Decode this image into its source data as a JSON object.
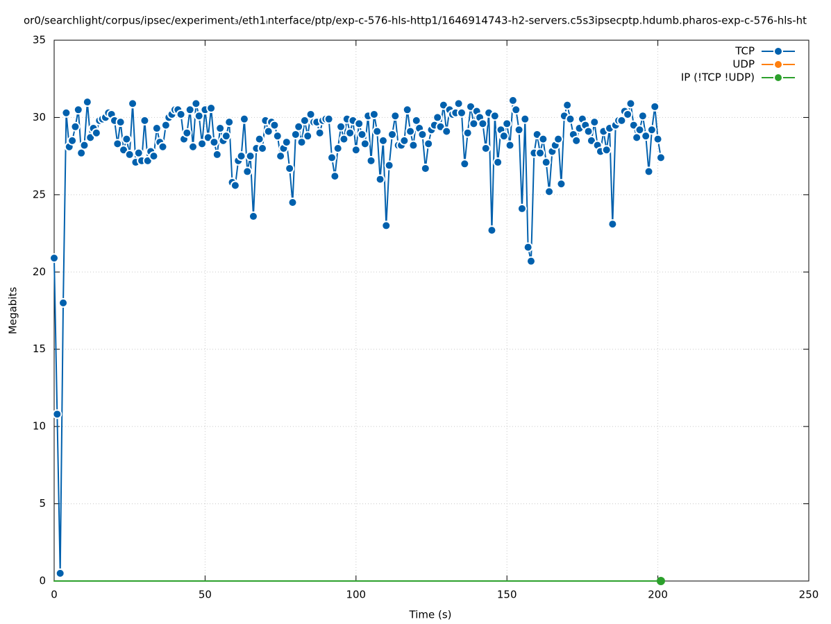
{
  "chart_data": {
    "type": "line",
    "title": "or0/searchlight/corpus/ipsec/experiment₃/eth1ᵢnterface/ptp/exp-c-576-hls-http1/1646914743-h2-servers.c5s3ipsecptp.hdumb.pharos-exp-c-576-hls-ht",
    "x_label": "Time (s)",
    "y_label": "Megabits",
    "xlim": [
      0,
      250
    ],
    "xticks": [
      0,
      50,
      100,
      150,
      200,
      250
    ],
    "ylim": [
      0,
      35
    ],
    "yticks": [
      0,
      5,
      10,
      15,
      20,
      25,
      30,
      35
    ],
    "grid": true,
    "legend": "top-right",
    "x": [
      0,
      1,
      2,
      3,
      4,
      5,
      6,
      7,
      8,
      9,
      10,
      11,
      12,
      13,
      14,
      15,
      16,
      17,
      18,
      19,
      20,
      21,
      22,
      23,
      24,
      25,
      26,
      27,
      28,
      29,
      30,
      31,
      32,
      33,
      34,
      35,
      36,
      37,
      38,
      39,
      40,
      41,
      42,
      43,
      44,
      45,
      46,
      47,
      48,
      49,
      50,
      51,
      52,
      53,
      54,
      55,
      56,
      57,
      58,
      59,
      60,
      61,
      62,
      63,
      64,
      65,
      66,
      67,
      68,
      69,
      70,
      71,
      72,
      73,
      74,
      75,
      76,
      77,
      78,
      79,
      80,
      81,
      82,
      83,
      84,
      85,
      86,
      87,
      88,
      89,
      90,
      91,
      92,
      93,
      94,
      95,
      96,
      97,
      98,
      99,
      100,
      101,
      102,
      103,
      104,
      105,
      106,
      107,
      108,
      109,
      110,
      111,
      112,
      113,
      114,
      115,
      116,
      117,
      118,
      119,
      120,
      121,
      122,
      123,
      124,
      125,
      126,
      127,
      128,
      129,
      130,
      131,
      132,
      133,
      134,
      135,
      136,
      137,
      138,
      139,
      140,
      141,
      142,
      143,
      144,
      145,
      146,
      147,
      148,
      149,
      150,
      151,
      152,
      153,
      154,
      155,
      156,
      157,
      158,
      159,
      160,
      161,
      162,
      163,
      164,
      165,
      166,
      167,
      168,
      169,
      170,
      171,
      172,
      173,
      174,
      175,
      176,
      177,
      178,
      179,
      180,
      181,
      182,
      183,
      184,
      185,
      186,
      187,
      188,
      189,
      190,
      191,
      192,
      193,
      194,
      195,
      196,
      197,
      198,
      199,
      200,
      201
    ],
    "series": [
      {
        "name": "TCP",
        "color": "#0060ad",
        "values": [
          20.9,
          10.8,
          0.5,
          18,
          30.3,
          28.1,
          28.5,
          29.4,
          30.5,
          27.7,
          28.2,
          31,
          28.7,
          29.3,
          29,
          29.8,
          29.9,
          30,
          30.3,
          30.2,
          29.8,
          28.3,
          29.7,
          27.9,
          28.6,
          27.6,
          30.9,
          27.1,
          27.7,
          27.2,
          29.8,
          27.2,
          27.8,
          27.5,
          29.3,
          28.4,
          28.1,
          29.5,
          30,
          30.2,
          30.5,
          30.5,
          30.2,
          28.6,
          29,
          30.5,
          28.1,
          30.9,
          30.1,
          28.3,
          30.5,
          28.7,
          30.6,
          28.4,
          27.6,
          29.3,
          28.5,
          28.8,
          29.7,
          25.8,
          25.6,
          27.2,
          27.5,
          29.9,
          26.5,
          27.5,
          23.6,
          28,
          28.6,
          28,
          29.8,
          29.1,
          29.7,
          29.5,
          28.8,
          27.5,
          28,
          28.4,
          26.7,
          24.5,
          28.9,
          29.4,
          28.4,
          29.8,
          28.8,
          30.2,
          29.7,
          29.7,
          29,
          29.8,
          29.9,
          29.9,
          27.4,
          26.2,
          28,
          29.4,
          28.6,
          29.9,
          29,
          29.8,
          27.9,
          29.6,
          28.9,
          28.3,
          30.1,
          27.2,
          30.2,
          29.1,
          26,
          28.5,
          23,
          26.9,
          28.9,
          30.1,
          28.2,
          28.2,
          28.5,
          30.5,
          29.1,
          28.2,
          29.8,
          29.3,
          28.9,
          26.7,
          28.3,
          29.2,
          29.5,
          30,
          29.4,
          30.8,
          29.1,
          30.5,
          30.2,
          30.3,
          30.9,
          30.3,
          27,
          29,
          30.7,
          29.6,
          30.4,
          30,
          29.6,
          28,
          30.3,
          22.7,
          30.1,
          27.1,
          29.2,
          28.8,
          29.6,
          28.2,
          31.1,
          30.5,
          29.2,
          24.1,
          29.9,
          21.6,
          20.7,
          27.7,
          28.9,
          27.7,
          28.6,
          27.1,
          25.2,
          27.8,
          28.2,
          28.6,
          25.7,
          30.1,
          30.8,
          29.9,
          28.9,
          28.5,
          29.3,
          29.9,
          29.5,
          29.1,
          28.5,
          29.7,
          28.2,
          27.8,
          29.1,
          27.9,
          29.3,
          23.1,
          29.5,
          29.8,
          29.8,
          30.4,
          30.2,
          30.9,
          29.5,
          28.7,
          29.2,
          30.1,
          28.8,
          26.5,
          29.2,
          30.7,
          28.6,
          27.4
        ]
      },
      {
        "name": "UDP",
        "color": "#ff7f0e",
        "values": [
          0,
          0,
          0,
          0,
          0,
          0,
          0,
          0,
          0,
          0,
          0,
          0,
          0,
          0,
          0,
          0,
          0,
          0,
          0,
          0,
          0,
          0,
          0,
          0,
          0,
          0,
          0,
          0,
          0,
          0,
          0,
          0,
          0,
          0,
          0,
          0,
          0,
          0,
          0,
          0,
          0,
          0,
          0,
          0,
          0,
          0,
          0,
          0,
          0,
          0,
          0,
          0,
          0,
          0,
          0,
          0,
          0,
          0,
          0,
          0,
          0,
          0,
          0,
          0,
          0,
          0,
          0,
          0,
          0,
          0,
          0,
          0,
          0,
          0,
          0,
          0,
          0,
          0,
          0,
          0,
          0,
          0,
          0,
          0,
          0,
          0,
          0,
          0,
          0,
          0,
          0,
          0,
          0,
          0,
          0,
          0,
          0,
          0,
          0,
          0,
          0,
          0,
          0,
          0,
          0,
          0,
          0,
          0,
          0,
          0,
          0,
          0,
          0,
          0,
          0,
          0,
          0,
          0,
          0,
          0,
          0,
          0,
          0,
          0,
          0,
          0,
          0,
          0,
          0,
          0,
          0,
          0,
          0,
          0,
          0,
          0,
          0,
          0,
          0,
          0,
          0,
          0,
          0,
          0,
          0,
          0,
          0,
          0,
          0,
          0,
          0,
          0,
          0,
          0,
          0,
          0,
          0,
          0,
          0,
          0,
          0,
          0,
          0,
          0,
          0,
          0,
          0,
          0,
          0,
          0,
          0,
          0,
          0,
          0,
          0,
          0,
          0,
          0,
          0,
          0,
          0,
          0,
          0,
          0,
          0,
          0,
          0,
          0,
          0,
          0,
          0,
          0,
          0,
          0,
          0,
          0,
          0,
          0,
          0,
          0,
          0,
          0
        ]
      },
      {
        "name": "IP (!TCP  !UDP)",
        "color": "#2ca02c",
        "values": [
          0,
          0,
          0,
          0,
          0,
          0,
          0,
          0,
          0,
          0,
          0,
          0,
          0,
          0,
          0,
          0,
          0,
          0,
          0,
          0,
          0,
          0,
          0,
          0,
          0,
          0,
          0,
          0,
          0,
          0,
          0,
          0,
          0,
          0,
          0,
          0,
          0,
          0,
          0,
          0,
          0,
          0,
          0,
          0,
          0,
          0,
          0,
          0,
          0,
          0,
          0,
          0,
          0,
          0,
          0,
          0,
          0,
          0,
          0,
          0,
          0,
          0,
          0,
          0,
          0,
          0,
          0,
          0,
          0,
          0,
          0,
          0,
          0,
          0,
          0,
          0,
          0,
          0,
          0,
          0,
          0,
          0,
          0,
          0,
          0,
          0,
          0,
          0,
          0,
          0,
          0,
          0,
          0,
          0,
          0,
          0,
          0,
          0,
          0,
          0,
          0,
          0,
          0,
          0,
          0,
          0,
          0,
          0,
          0,
          0,
          0,
          0,
          0,
          0,
          0,
          0,
          0,
          0,
          0,
          0,
          0,
          0,
          0,
          0,
          0,
          0,
          0,
          0,
          0,
          0,
          0,
          0,
          0,
          0,
          0,
          0,
          0,
          0,
          0,
          0,
          0,
          0,
          0,
          0,
          0,
          0,
          0,
          0,
          0,
          0,
          0,
          0,
          0,
          0,
          0,
          0,
          0,
          0,
          0,
          0,
          0,
          0,
          0,
          0,
          0,
          0,
          0,
          0,
          0,
          0,
          0,
          0,
          0,
          0,
          0,
          0,
          0,
          0,
          0,
          0,
          0,
          0,
          0,
          0,
          0,
          0,
          0,
          0,
          0,
          0,
          0,
          0,
          0,
          0,
          0,
          0,
          0,
          0,
          0,
          0,
          0,
          0
        ]
      }
    ]
  }
}
